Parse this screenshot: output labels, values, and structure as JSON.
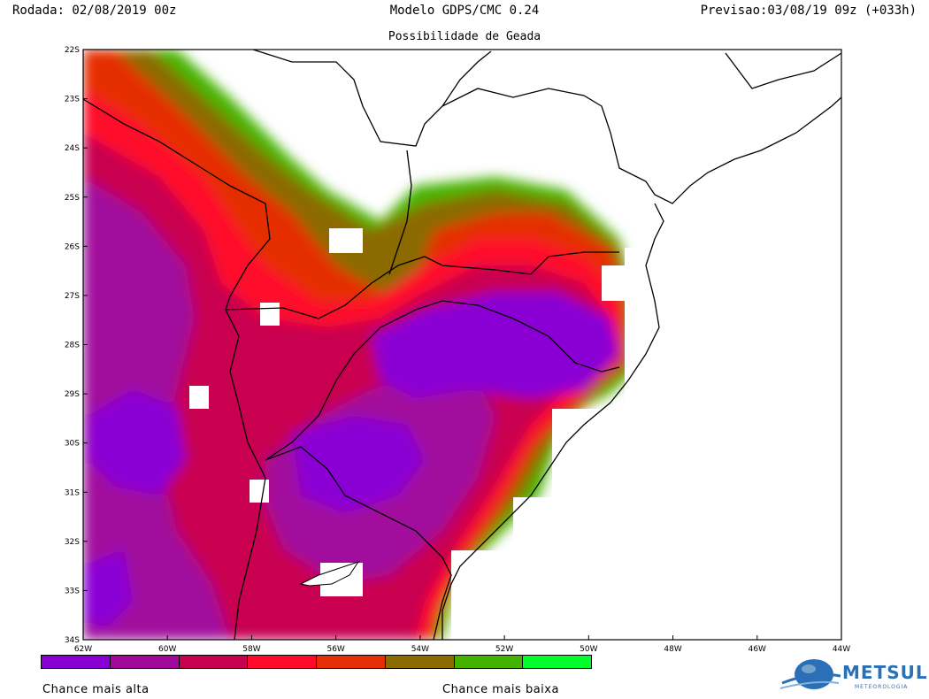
{
  "header": {
    "run": "Rodada: 02/08/2019 00z",
    "model": "Modelo GDPS/CMC 0.24",
    "forecast": "Previsao:03/08/19 09z (+033h)",
    "subtitle": "Possibilidade de Geada"
  },
  "map": {
    "lat_labels": [
      "22S",
      "23S",
      "24S",
      "25S",
      "26S",
      "27S",
      "28S",
      "29S",
      "30S",
      "31S",
      "32S",
      "33S",
      "34S"
    ],
    "lon_labels": [
      "62W",
      "60W",
      "58W",
      "56W",
      "54W",
      "52W",
      "50W",
      "48W",
      "46W",
      "44W"
    ]
  },
  "legend": {
    "colors": [
      "#8a00d4",
      "#a1089c",
      "#c80050",
      "#ff0a2a",
      "#e52e06",
      "#8b6a00",
      "#44b300",
      "#00ff2a"
    ],
    "label_high": "Chance mais alta",
    "label_low": "Chance mais baixa"
  },
  "logo": {
    "name": "METSUL",
    "tagline": "METEOROLOGIA"
  }
}
